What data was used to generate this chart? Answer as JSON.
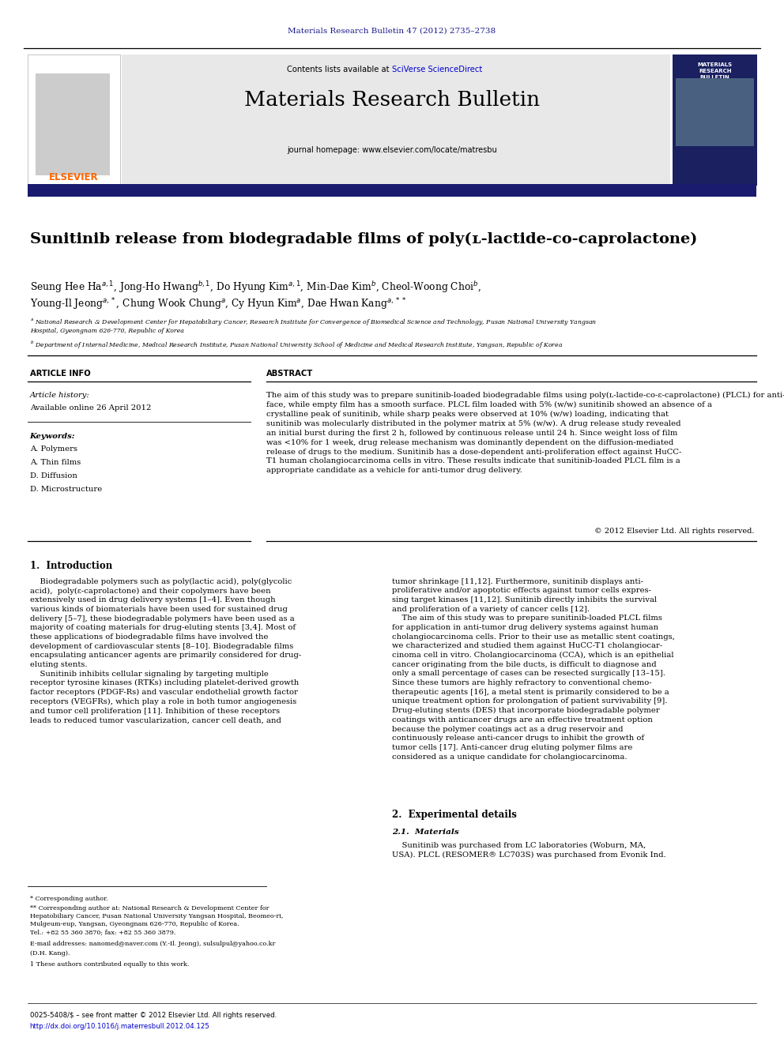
{
  "fig_width": 9.92,
  "fig_height": 13.23,
  "bg_color": "#ffffff",
  "journal_ref": "Materials Research Bulletin 47 (2012) 2735–2738",
  "journal_ref_color": "#1a1a8c",
  "journal_name": "Materials Research Bulletin",
  "contents_text": "Contents lists available at ",
  "sciverse_text": "SciVerse ScienceDirect",
  "homepage_text": "journal homepage: www.elsevier.com/locate/matresbu",
  "header_bg": "#e8e8e8",
  "header_bar_color": "#1a1a6e",
  "paper_title": "Sunitinib release from biodegradable films of poly(ʟ-lactide-co-caprolactone)",
  "authors_line1": "Seung Hee Ha$^{a,1}$, Jong-Ho Hwang$^{b,1}$, Do Hyung Kim$^{a,1}$, Min-Dae Kim$^{b}$, Cheol-Woong Choi$^{b}$,",
  "authors_line2": "Young-Il Jeong$^{a,*}$, Chung Wook Chung$^{a}$, Cy Hyun Kim$^{a}$, Dae Hwan Kang$^{a,**}$",
  "affil_a1": "$^{a}$ National Research & Development Center for Hepatobiliary Cancer, Research Institute for Convergence of Biomedical Science and Technology, Pusan National University Yangsan",
  "affil_a2": "Hospital, Gyeongnam 626-770, Republic of Korea",
  "affil_b": "$^{b}$ Department of Internal Medicine, Medical Research Institute, Pusan National University School of Medicine and Medical Research Institute, Yangsan, Republic of Korea",
  "article_info_title": "ARTICLE INFO",
  "abstract_title": "ABSTRACT",
  "article_history_label": "Article history:",
  "available_online": "Available online 26 April 2012",
  "keywords_label": "Keywords:",
  "keywords": [
    "A. Polymers",
    "A. Thin films",
    "D. Diffusion",
    "D. Microstructure"
  ],
  "abstract_text": "The aim of this study was to prepare sunitinib-loaded biodegradable films using poly(ʟ-lactide-co-ε-caprolactone) (PLCL) for anti-tumor drug delivery. Sunitinib-loaded PLCL film has a rough sur-\nface, while empty film has a smooth surface. PLCL film loaded with 5% (w/w) sunitinib showed an absence of a\ncrystalline peak of sunitinib, while sharp peaks were observed at 10% (w/w) loading, indicating that\nsunitinib was molecularly distributed in the polymer matrix at 5% (w/w). A drug release study revealed\nan initial burst during the first 2 h, followed by continuous release until 24 h. Since weight loss of film\nwas <10% for 1 week, drug release mechanism was dominantly dependent on the diffusion-mediated\nrelease of drugs to the medium. Sunitinib has a dose-dependent anti-proliferation effect against HuCC-\nT1 human cholangiocarcinoma cells in vitro. These results indicate that sunitinib-loaded PLCL film is a\nappropriate candidate as a vehicle for anti-tumor drug delivery.",
  "copyright_text": "© 2012 Elsevier Ltd. All rights reserved.",
  "intro_title": "1.  Introduction",
  "intro_col1_line1": "    Biodegradable polymers such as poly(lactic acid), poly(glycolic",
  "intro_col1_line2": "acid),  poly(ε-caprolactone) and their copolymers have been",
  "intro_col1_line3": "extensively used in drug delivery systems [1–4]. Even though",
  "intro_col1_line4": "various kinds of biomaterials have been used for sustained drug",
  "intro_col1_line5": "delivery [5–7], these biodegradable polymers have been used as a",
  "intro_col1_line6": "majority of coating materials for drug-eluting stents [3,4]. Most of",
  "intro_col1_line7": "these applications of biodegradable films have involved the",
  "intro_col1_line8": "development of cardiovascular stents [8–10]. Biodegradable films",
  "intro_col1_line9": "encapsulating anticancer agents are primarily considered for drug-",
  "intro_col1_line10": "eluting stents.",
  "intro_col1_line11": "    Sunitinib inhibits cellular signaling by targeting multiple",
  "intro_col1_line12": "receptor tyrosine kinases (RTKs) including platelet-derived growth",
  "intro_col1_line13": "factor receptors (PDGF-Rs) and vascular endothelial growth factor",
  "intro_col1_line14": "receptors (VEGFRs), which play a role in both tumor angiogenesis",
  "intro_col1_line15": "and tumor cell proliferation [11]. Inhibition of these receptors",
  "intro_col1_line16": "leads to reduced tumor vascularization, cancer cell death, and",
  "intro_col2_line1": "tumor shrinkage [11,12]. Furthermore, sunitinib displays anti-",
  "intro_col2_line2": "proliferative and/or apoptotic effects against tumor cells expres-",
  "intro_col2_line3": "sing target kinases [11,12]. Sunitinib directly inhibits the survival",
  "intro_col2_line4": "and proliferation of a variety of cancer cells [12].",
  "intro_col2_line5": "    The aim of this study was to prepare sunitinib-loaded PLCL films",
  "intro_col2_line6": "for application in anti-tumor drug delivery systems against human",
  "intro_col2_line7": "cholangiocarcinoma cells. Prior to their use as metallic stent coatings,",
  "intro_col2_line8": "we characterized and studied them against HuCC-T1 cholangiocar-",
  "intro_col2_line9": "cinoma cell in vitro. Cholangiocarcinoma (CCA), which is an epithelial",
  "intro_col2_line10": "cancer originating from the bile ducts, is difficult to diagnose and",
  "intro_col2_line11": "only a small percentage of cases can be resected surgically [13–15].",
  "intro_col2_line12": "Since these tumors are highly refractory to conventional chemo-",
  "intro_col2_line13": "therapeutic agents [16], a metal stent is primarily considered to be a",
  "intro_col2_line14": "unique treatment option for prolongation of patient survivability [9].",
  "intro_col2_line15": "Drug-eluting stents (DES) that incorporate biodegradable polymer",
  "intro_col2_line16": "coatings with anticancer drugs are an effective treatment option",
  "intro_col2_line17": "because the polymer coatings act as a drug reservoir and",
  "intro_col2_line18": "continuously release anti-cancer drugs to inhibit the growth of",
  "intro_col2_line19": "tumor cells [17]. Anti-cancer drug eluting polymer films are",
  "intro_col2_line20": "considered as a unique candidate for cholangiocarcinoma.",
  "section2_title": "2.  Experimental details",
  "section21_title": "2.1.  Materials",
  "section21_text": "    Sunitinib was purchased from LC laboratories (Woburn, MA,\nUSA). PLCL (RESOMER® LC703S) was purchased from Evonik Ind.",
  "footnote_star": "* Corresponding author.",
  "footnote_dstar_line1": "** Corresponding author at: National Research & Development Center for",
  "footnote_dstar_line2": "Hepatobiliary Cancer, Pusan National University Yangsan Hospital, Beomeo-ri,",
  "footnote_dstar_line3": "Mulgeum-eup, Yangsan, Gyeongnam 626-770, Republic of Korea.",
  "footnote_dstar_line4": "Tel.: +82 55 360 3870; fax: +82 55 360 3879.",
  "footnote_email": "E-mail addresses: nanomed@naver.com (Y.-Il. Jeong), sulsulpul@yahoo.co.kr",
  "footnote_email2": "(D.H. Kang).",
  "footnote_1": "1 These authors contributed equally to this work.",
  "footer_text1": "0025-5408/$ – see front matter © 2012 Elsevier Ltd. All rights reserved.",
  "footer_text2": "http://dx.doi.org/10.1016/j.materresbull.2012.04.125",
  "elsevier_color": "#ff6600",
  "link_color": "#0000cc",
  "dark_navy": "#1a1a6e"
}
